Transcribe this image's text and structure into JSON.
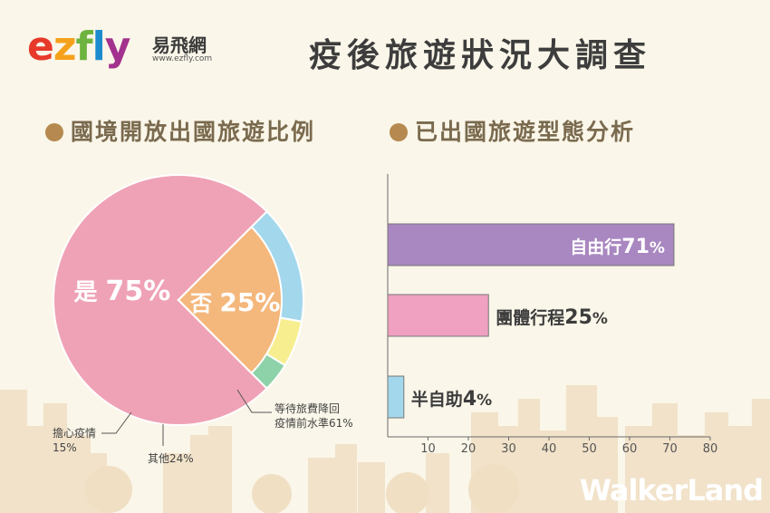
{
  "brand": {
    "logo": [
      "e",
      "z",
      "f",
      "l",
      "y"
    ],
    "name_cn": "易飛網",
    "url": "www.ezfly.com"
  },
  "title": "疫後旅遊狀況大調查",
  "watermark": "WalkerLand",
  "colors": {
    "pie_yes": "#efa2b6",
    "pie_no": "#f4b77c",
    "pie_wait": "#a3d7ec",
    "pie_other": "#f7ef8f",
    "pie_worry": "#8ed2aa",
    "bar_free": "#a987c0",
    "bar_group": "#f0a0c0",
    "bar_semi": "#a3d7ec",
    "section_dot": "#b5894f"
  },
  "chart_data": [
    {
      "type": "pie",
      "title": "國境開放出國旅遊比例",
      "slices": [
        {
          "label": "是",
          "value": 75,
          "display": "75%"
        },
        {
          "label": "否",
          "value": 25,
          "display": "25%"
        }
      ],
      "sub_breakdown_of": "否",
      "sub_slices": [
        {
          "label": "等待旅費降回疫情前水準",
          "value": 61,
          "display": "61%"
        },
        {
          "label": "其他",
          "value": 24,
          "display": "24%"
        },
        {
          "label": "擔心疫情",
          "value": 15,
          "display": "15%"
        }
      ]
    },
    {
      "type": "bar",
      "orientation": "horizontal",
      "title": "已出國旅遊型態分析",
      "categories": [
        "自由行",
        "團體行程",
        "半自助"
      ],
      "values": [
        71,
        25,
        4
      ],
      "xlim": [
        0,
        80
      ],
      "xticks": [
        10,
        20,
        30,
        40,
        50,
        60,
        70,
        80
      ]
    }
  ]
}
